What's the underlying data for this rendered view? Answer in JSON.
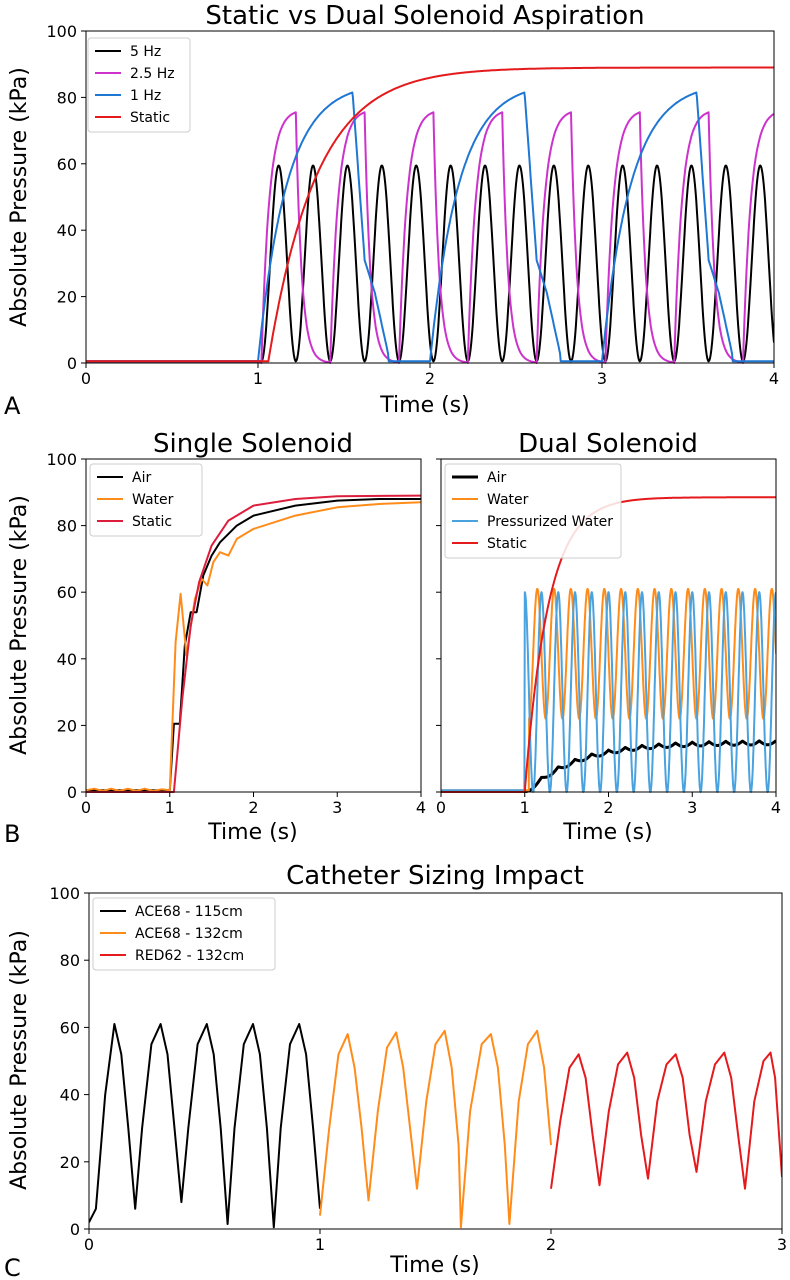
{
  "panel_letters": [
    "A",
    "B",
    "C"
  ],
  "chart_data": [
    {
      "id": "A",
      "type": "line",
      "title": "Static vs Dual Solenoid Aspiration",
      "xlabel": "Time (s)",
      "ylabel": "Absolute Pressure (kPa)",
      "xlim": [
        0,
        4
      ],
      "ylim": [
        0,
        100
      ],
      "xticks": [
        "0",
        "1",
        "2",
        "3",
        "4"
      ],
      "yticks": [
        "0",
        "20",
        "40",
        "60",
        "80",
        "100"
      ],
      "grid": false,
      "legend_position": "top-left",
      "series": [
        {
          "name": "5 Hz",
          "color": "#000000",
          "model": {
            "kind": "periodic",
            "start": 1.02,
            "period": 0.2,
            "peak": 59.5,
            "trough": 0.5,
            "shape": "sine"
          }
        },
        {
          "name": "2.5 Hz",
          "color": "#cc33cc",
          "model": {
            "kind": "periodic",
            "start": 1.02,
            "period": 0.4,
            "peak": 75.5,
            "trough": 0,
            "shape": "sat"
          }
        },
        {
          "name": "1 Hz",
          "color": "#1f77d4",
          "model": {
            "kind": "periodic",
            "start": 1.0,
            "period": 1.0,
            "peak": 81.5,
            "trough": 0.5,
            "shape": "fill"
          }
        },
        {
          "name": "Static",
          "color": "#e41a1c",
          "model": {
            "kind": "exp",
            "start": 1.06,
            "final": 89,
            "tau": 0.28,
            "base": 0.5
          }
        }
      ]
    },
    {
      "id": "B1",
      "type": "line",
      "title": "Single Solenoid",
      "xlabel": "Time (s)",
      "ylabel": "Absolute Pressure (kPa)",
      "xlim": [
        0,
        4
      ],
      "ylim": [
        0,
        100
      ],
      "xticks": [
        "0",
        "1",
        "2",
        "3",
        "4"
      ],
      "yticks": [
        "0",
        "20",
        "40",
        "60",
        "80",
        "100"
      ],
      "grid": false,
      "legend_position": "top-left",
      "series": [
        {
          "name": "Air",
          "color": "#000000",
          "points": [
            [
              0,
              0.5
            ],
            [
              1.0,
              0.5
            ],
            [
              1.05,
              20.5
            ],
            [
              1.12,
              20.5
            ],
            [
              1.18,
              44
            ],
            [
              1.25,
              54
            ],
            [
              1.32,
              54
            ],
            [
              1.4,
              65
            ],
            [
              1.5,
              71
            ],
            [
              1.6,
              75
            ],
            [
              1.8,
              80
            ],
            [
              2.0,
              83
            ],
            [
              2.5,
              86
            ],
            [
              3.0,
              87.5
            ],
            [
              3.5,
              88
            ],
            [
              4.0,
              88
            ]
          ]
        },
        {
          "name": "Water",
          "color": "#ff8c1a",
          "points": [
            [
              0,
              0.5
            ],
            [
              0.1,
              1
            ],
            [
              0.2,
              0.3
            ],
            [
              0.3,
              1
            ],
            [
              0.4,
              0.3
            ],
            [
              0.5,
              1
            ],
            [
              0.6,
              0.3
            ],
            [
              0.7,
              1
            ],
            [
              0.8,
              0.3
            ],
            [
              0.9,
              0.8
            ],
            [
              1.0,
              0.5
            ],
            [
              1.07,
              45
            ],
            [
              1.13,
              59.5
            ],
            [
              1.2,
              41
            ],
            [
              1.3,
              58
            ],
            [
              1.38,
              64
            ],
            [
              1.45,
              62
            ],
            [
              1.52,
              69
            ],
            [
              1.6,
              72
            ],
            [
              1.7,
              71
            ],
            [
              1.8,
              76
            ],
            [
              2.0,
              79
            ],
            [
              2.5,
              83
            ],
            [
              3.0,
              85.5
            ],
            [
              3.5,
              86.5
            ],
            [
              4.0,
              87
            ]
          ]
        },
        {
          "name": "Static",
          "color": "#dc1e3c",
          "points": [
            [
              0,
              0
            ],
            [
              1.05,
              0
            ],
            [
              1.15,
              28
            ],
            [
              1.25,
              50
            ],
            [
              1.35,
              63
            ],
            [
              1.5,
              74
            ],
            [
              1.7,
              81.5
            ],
            [
              2.0,
              86
            ],
            [
              2.5,
              88
            ],
            [
              3.0,
              88.8
            ],
            [
              4.0,
              89
            ]
          ]
        }
      ]
    },
    {
      "id": "B2",
      "type": "line",
      "title": "Dual Solenoid",
      "xlabel": "Time (s)",
      "ylabel": "",
      "xlim": [
        0,
        4
      ],
      "ylim": [
        0,
        100
      ],
      "xticks": [
        "0",
        "1",
        "2",
        "3",
        "4"
      ],
      "yticks": [],
      "grid": false,
      "legend_position": "top-left",
      "series": [
        {
          "name": "Air",
          "color": "#000000",
          "width": 3,
          "model": {
            "kind": "air",
            "start": 1.0
          }
        },
        {
          "name": "Water",
          "color": "#ff8c1a",
          "model": {
            "kind": "periodic",
            "start": 1.05,
            "period": 0.2,
            "peak": 61,
            "trough": 22,
            "shape": "sine"
          }
        },
        {
          "name": "Pressurized Water",
          "color": "#4aa3df",
          "model": {
            "kind": "periodic",
            "start": 1.0,
            "period": 0.2,
            "peak": 60,
            "trough": 0,
            "shape": "sine",
            "phase": 0.1
          }
        },
        {
          "name": "Static",
          "color": "#e41a1c",
          "model": {
            "kind": "exp",
            "start": 1.0,
            "final": 88.5,
            "tau": 0.28,
            "base": 0
          }
        }
      ]
    },
    {
      "id": "C",
      "type": "line",
      "title": "Catheter Sizing Impact",
      "xlabel": "Time (s)",
      "ylabel": "Absolute Pressure (kPa)",
      "xlim": [
        0,
        3
      ],
      "ylim": [
        0,
        100
      ],
      "xticks": [
        "0",
        "1",
        "2",
        "3"
      ],
      "yticks": [
        "0",
        "20",
        "40",
        "60",
        "80",
        "100"
      ],
      "grid": false,
      "legend_position": "top-left",
      "series": [
        {
          "name": "ACE68 - 115cm",
          "color": "#000000",
          "points": [
            [
              0,
              2
            ],
            [
              0.03,
              6
            ],
            [
              0.07,
              40
            ],
            [
              0.11,
              61
            ],
            [
              0.14,
              52
            ],
            [
              0.17,
              30
            ],
            [
              0.2,
              6
            ],
            [
              0.23,
              30
            ],
            [
              0.27,
              55
            ],
            [
              0.31,
              61
            ],
            [
              0.34,
              52
            ],
            [
              0.37,
              30
            ],
            [
              0.4,
              8
            ],
            [
              0.43,
              30
            ],
            [
              0.47,
              55
            ],
            [
              0.51,
              61
            ],
            [
              0.54,
              52
            ],
            [
              0.57,
              30
            ],
            [
              0.6,
              1.5
            ],
            [
              0.63,
              30
            ],
            [
              0.67,
              55
            ],
            [
              0.71,
              61
            ],
            [
              0.74,
              52
            ],
            [
              0.77,
              30
            ],
            [
              0.8,
              0.5
            ],
            [
              0.83,
              30
            ],
            [
              0.87,
              55
            ],
            [
              0.91,
              61
            ],
            [
              0.94,
              52
            ],
            [
              0.97,
              30
            ],
            [
              1.0,
              6
            ]
          ]
        },
        {
          "name": "ACE68 - 132cm",
          "color": "#ff8c1a",
          "points": [
            [
              1.0,
              4
            ],
            [
              1.04,
              30
            ],
            [
              1.08,
              52
            ],
            [
              1.12,
              58
            ],
            [
              1.15,
              48
            ],
            [
              1.18,
              30
            ],
            [
              1.21,
              8.5
            ],
            [
              1.25,
              35
            ],
            [
              1.29,
              54
            ],
            [
              1.33,
              58.5
            ],
            [
              1.36,
              48
            ],
            [
              1.39,
              30
            ],
            [
              1.42,
              12
            ],
            [
              1.46,
              38
            ],
            [
              1.5,
              55
            ],
            [
              1.54,
              59
            ],
            [
              1.57,
              48
            ],
            [
              1.6,
              25
            ],
            [
              1.61,
              0.5
            ],
            [
              1.65,
              35
            ],
            [
              1.7,
              55
            ],
            [
              1.74,
              58
            ],
            [
              1.77,
              48
            ],
            [
              1.8,
              25
            ],
            [
              1.82,
              1.5
            ],
            [
              1.86,
              38
            ],
            [
              1.9,
              55
            ],
            [
              1.94,
              59
            ],
            [
              1.97,
              48
            ],
            [
              2.0,
              25
            ]
          ]
        },
        {
          "name": "RED62 - 132cm",
          "color": "#e41a1c",
          "points": [
            [
              2.0,
              12
            ],
            [
              2.04,
              32
            ],
            [
              2.08,
              48
            ],
            [
              2.12,
              52
            ],
            [
              2.15,
              45
            ],
            [
              2.18,
              28
            ],
            [
              2.21,
              13
            ],
            [
              2.25,
              35
            ],
            [
              2.29,
              49
            ],
            [
              2.33,
              52.5
            ],
            [
              2.36,
              45
            ],
            [
              2.39,
              28
            ],
            [
              2.42,
              15
            ],
            [
              2.46,
              38
            ],
            [
              2.5,
              49
            ],
            [
              2.54,
              52
            ],
            [
              2.57,
              45
            ],
            [
              2.6,
              28
            ],
            [
              2.63,
              17
            ],
            [
              2.67,
              38
            ],
            [
              2.71,
              49
            ],
            [
              2.75,
              52.5
            ],
            [
              2.78,
              45
            ],
            [
              2.81,
              28
            ],
            [
              2.84,
              12
            ],
            [
              2.88,
              38
            ],
            [
              2.92,
              50
            ],
            [
              2.95,
              52.5
            ],
            [
              2.97,
              45
            ],
            [
              3.0,
              15.5
            ]
          ]
        }
      ]
    }
  ]
}
